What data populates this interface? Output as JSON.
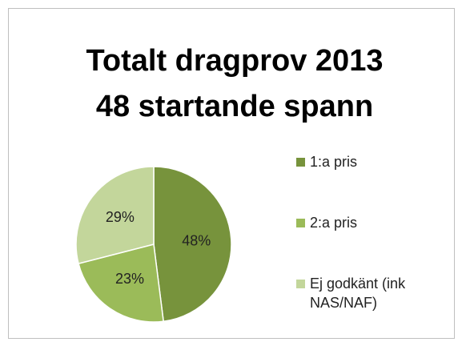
{
  "chart_data": {
    "type": "pie",
    "title": [
      "Totalt dragprov 2013",
      "48 startande spann"
    ],
    "categories": [
      "1:a pris",
      "2:a pris",
      "Ej godkänt (ink NAS/NAF)"
    ],
    "values": [
      48,
      23,
      29
    ],
    "value_labels": [
      "48%",
      "23%",
      "29%"
    ],
    "colors": [
      "#77933c",
      "#9bbb59",
      "#c3d69b"
    ],
    "legend": "right"
  }
}
